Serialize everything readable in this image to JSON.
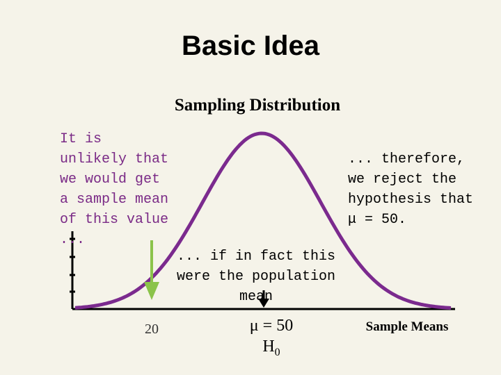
{
  "title": "Basic Idea",
  "subtitle": "Sampling Distribution",
  "left_note": "It is unlikely that we would get a sample mean of this value ...",
  "right_note": "... therefore, we reject the hypothesis that μ = 50.",
  "mid_note": "... if in fact this were the population mean",
  "mean_label": "μ = 50",
  "h0": {
    "letter": "H",
    "sub": "0"
  },
  "tick_label": "20",
  "x_axis_label": "Sample Means",
  "colors": {
    "background": "#f5f3e9",
    "curve": "#7b2a8e",
    "left_arrow": "#8bc34a",
    "text_accent": "#7a2a86"
  },
  "icons": {
    "down_arrow_sample": "arrow-down-green",
    "down_arrow_mean": "arrow-down-black"
  }
}
